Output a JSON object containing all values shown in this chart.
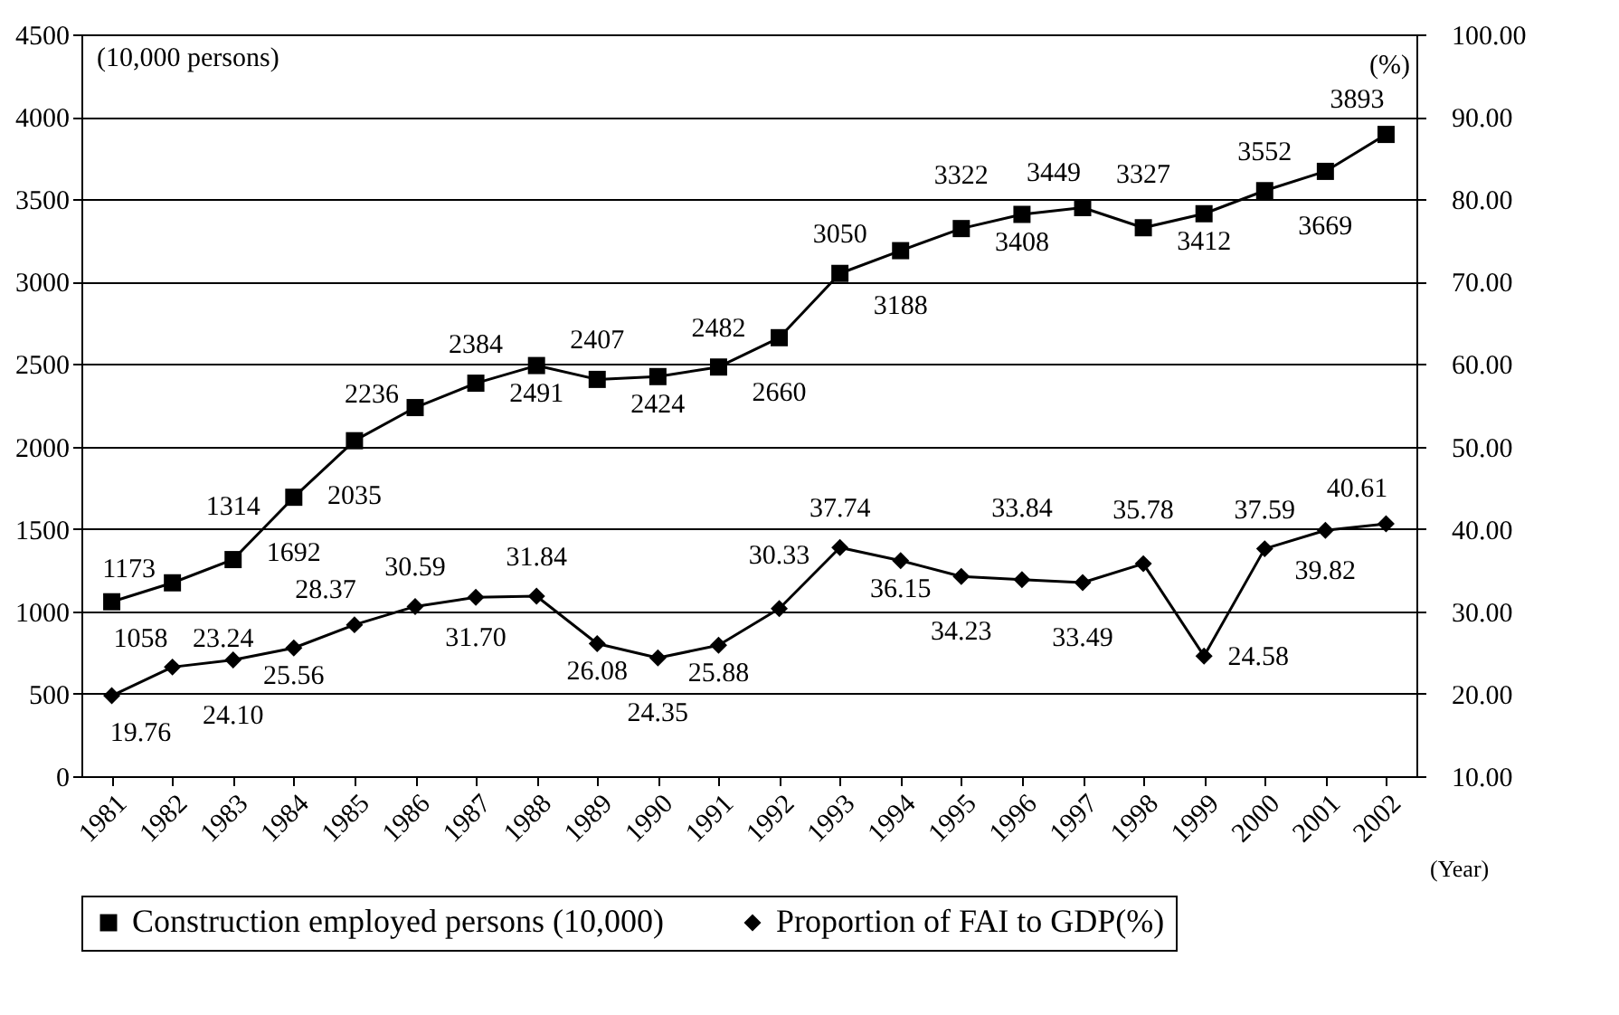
{
  "chart_data": {
    "type": "line",
    "categories": [
      "1981",
      "1982",
      "1983",
      "1984",
      "1985",
      "1986",
      "1987",
      "1988",
      "1989",
      "1990",
      "1991",
      "1992",
      "1993",
      "1994",
      "1995",
      "1996",
      "1997",
      "1998",
      "1999",
      "2000",
      "2001",
      "2002"
    ],
    "series": [
      {
        "name": "Construction employed persons (10,000)",
        "color": "#000000",
        "marker": "square",
        "values": [
          1058,
          1173,
          1314,
          1692,
          2035,
          2236,
          2384,
          2491,
          2407,
          2424,
          2482,
          2660,
          3050,
          3188,
          3322,
          3408,
          3449,
          3327,
          3412,
          3552,
          3669,
          3893
        ]
      },
      {
        "name": "Proportion of FAI to GDP(%)",
        "color": "#000000",
        "marker": "diamond",
        "axis": "y2",
        "values": [
          19.76,
          23.24,
          24.1,
          25.56,
          28.37,
          30.59,
          31.7,
          31.84,
          26.08,
          24.35,
          25.88,
          30.33,
          37.74,
          36.15,
          34.23,
          33.84,
          33.49,
          35.78,
          24.58,
          37.59,
          39.82,
          40.61
        ],
        "value_labels": [
          "19.76",
          "23.24",
          "24.10",
          "25.56",
          "28.37",
          "30.59",
          "31.70",
          "31.84",
          "26.08",
          "24.35",
          "25.88",
          "30.33",
          "37.74",
          "36.15",
          "34.23",
          "33.84",
          "33.49",
          "35.78",
          "24.58",
          "37.59",
          "39.82",
          "40.61"
        ]
      }
    ],
    "ylabel": "(10,000 persons)",
    "y2label": "(%)",
    "xlabel": "(Year)",
    "ylim": [
      0,
      4500
    ],
    "yticks": [
      0,
      500,
      1000,
      1500,
      2000,
      2500,
      3000,
      3500,
      4000,
      4500
    ],
    "y2lim": [
      10,
      100
    ],
    "y2ticks": [
      {
        "value": 10,
        "label": "10.00"
      },
      {
        "value": 20,
        "label": "20.00"
      },
      {
        "value": 30,
        "label": "30.00"
      },
      {
        "value": 40,
        "label": "40.00"
      },
      {
        "value": 50,
        "label": "50.00"
      },
      {
        "value": 60,
        "label": "60.00"
      },
      {
        "value": 70,
        "label": "70.00"
      },
      {
        "value": 80,
        "label": "80.00"
      },
      {
        "value": 90,
        "label": "90.00"
      },
      {
        "value": 100,
        "label": "100.00"
      }
    ],
    "grid": "y",
    "legend": "bottom",
    "data_labels": true,
    "line_style": "solid"
  }
}
